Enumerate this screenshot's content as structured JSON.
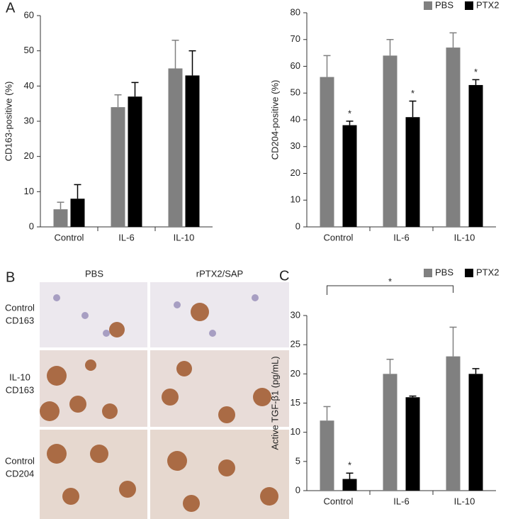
{
  "panel_labels": [
    "A",
    "B",
    "C"
  ],
  "micrographs": {
    "columns": [
      "PBS",
      "rPTX2/SAP"
    ],
    "rows": [
      [
        "Control",
        "CD163"
      ],
      [
        "IL-10",
        "CD163"
      ],
      [
        "Control",
        "CD204"
      ]
    ]
  },
  "chart_data": [
    {
      "type": "bar",
      "y_label": "CD163-positive (%)",
      "categories": [
        "Control",
        "IL-6",
        "IL-10"
      ],
      "series": [
        {
          "color": "#808080",
          "values": [
            5,
            34,
            45
          ],
          "errors": [
            2,
            3.5,
            8
          ]
        },
        {
          "color": "#000000",
          "values": [
            8,
            37,
            43
          ],
          "errors": [
            4,
            4,
            7
          ]
        }
      ],
      "ylim": [
        0,
        60
      ],
      "yticks": [
        0,
        10,
        20,
        30,
        40,
        50,
        60
      ]
    },
    {
      "type": "bar",
      "y_label": "CD204-positive (%)",
      "categories": [
        "Control",
        "IL-6",
        "IL-10"
      ],
      "series": [
        {
          "name": "PBS",
          "color": "#808080",
          "values": [
            56,
            64,
            67
          ],
          "errors": [
            8,
            6,
            5.5
          ]
        },
        {
          "name": "PTX2",
          "color": "#000000",
          "values": [
            38,
            41,
            53
          ],
          "errors": [
            1.5,
            6,
            2
          ],
          "markers": [
            "*",
            "*",
            "*"
          ]
        }
      ],
      "ylim": [
        0,
        80
      ],
      "yticks": [
        0,
        10,
        20,
        30,
        40,
        50,
        60,
        70,
        80
      ],
      "legend": "top-right"
    },
    {
      "type": "bar",
      "y_label": "Active TGF-β1 (pg/mL)",
      "categories": [
        "Control",
        "IL-6",
        "IL-10"
      ],
      "series": [
        {
          "name": "PBS",
          "color": "#808080",
          "values": [
            12,
            20,
            23
          ],
          "errors": [
            2.4,
            2.5,
            5
          ]
        },
        {
          "name": "PTX2",
          "color": "#000000",
          "values": [
            2,
            16,
            20
          ],
          "errors": [
            1,
            0.2,
            0.9
          ],
          "markers": [
            "*",
            null,
            null
          ]
        }
      ],
      "brackets": [
        {
          "from": 0,
          "to": 2,
          "label": "*"
        }
      ],
      "ylim": [
        0,
        30
      ],
      "yticks": [
        0,
        5,
        10,
        15,
        20,
        25,
        30
      ],
      "legend": "top-right"
    }
  ]
}
